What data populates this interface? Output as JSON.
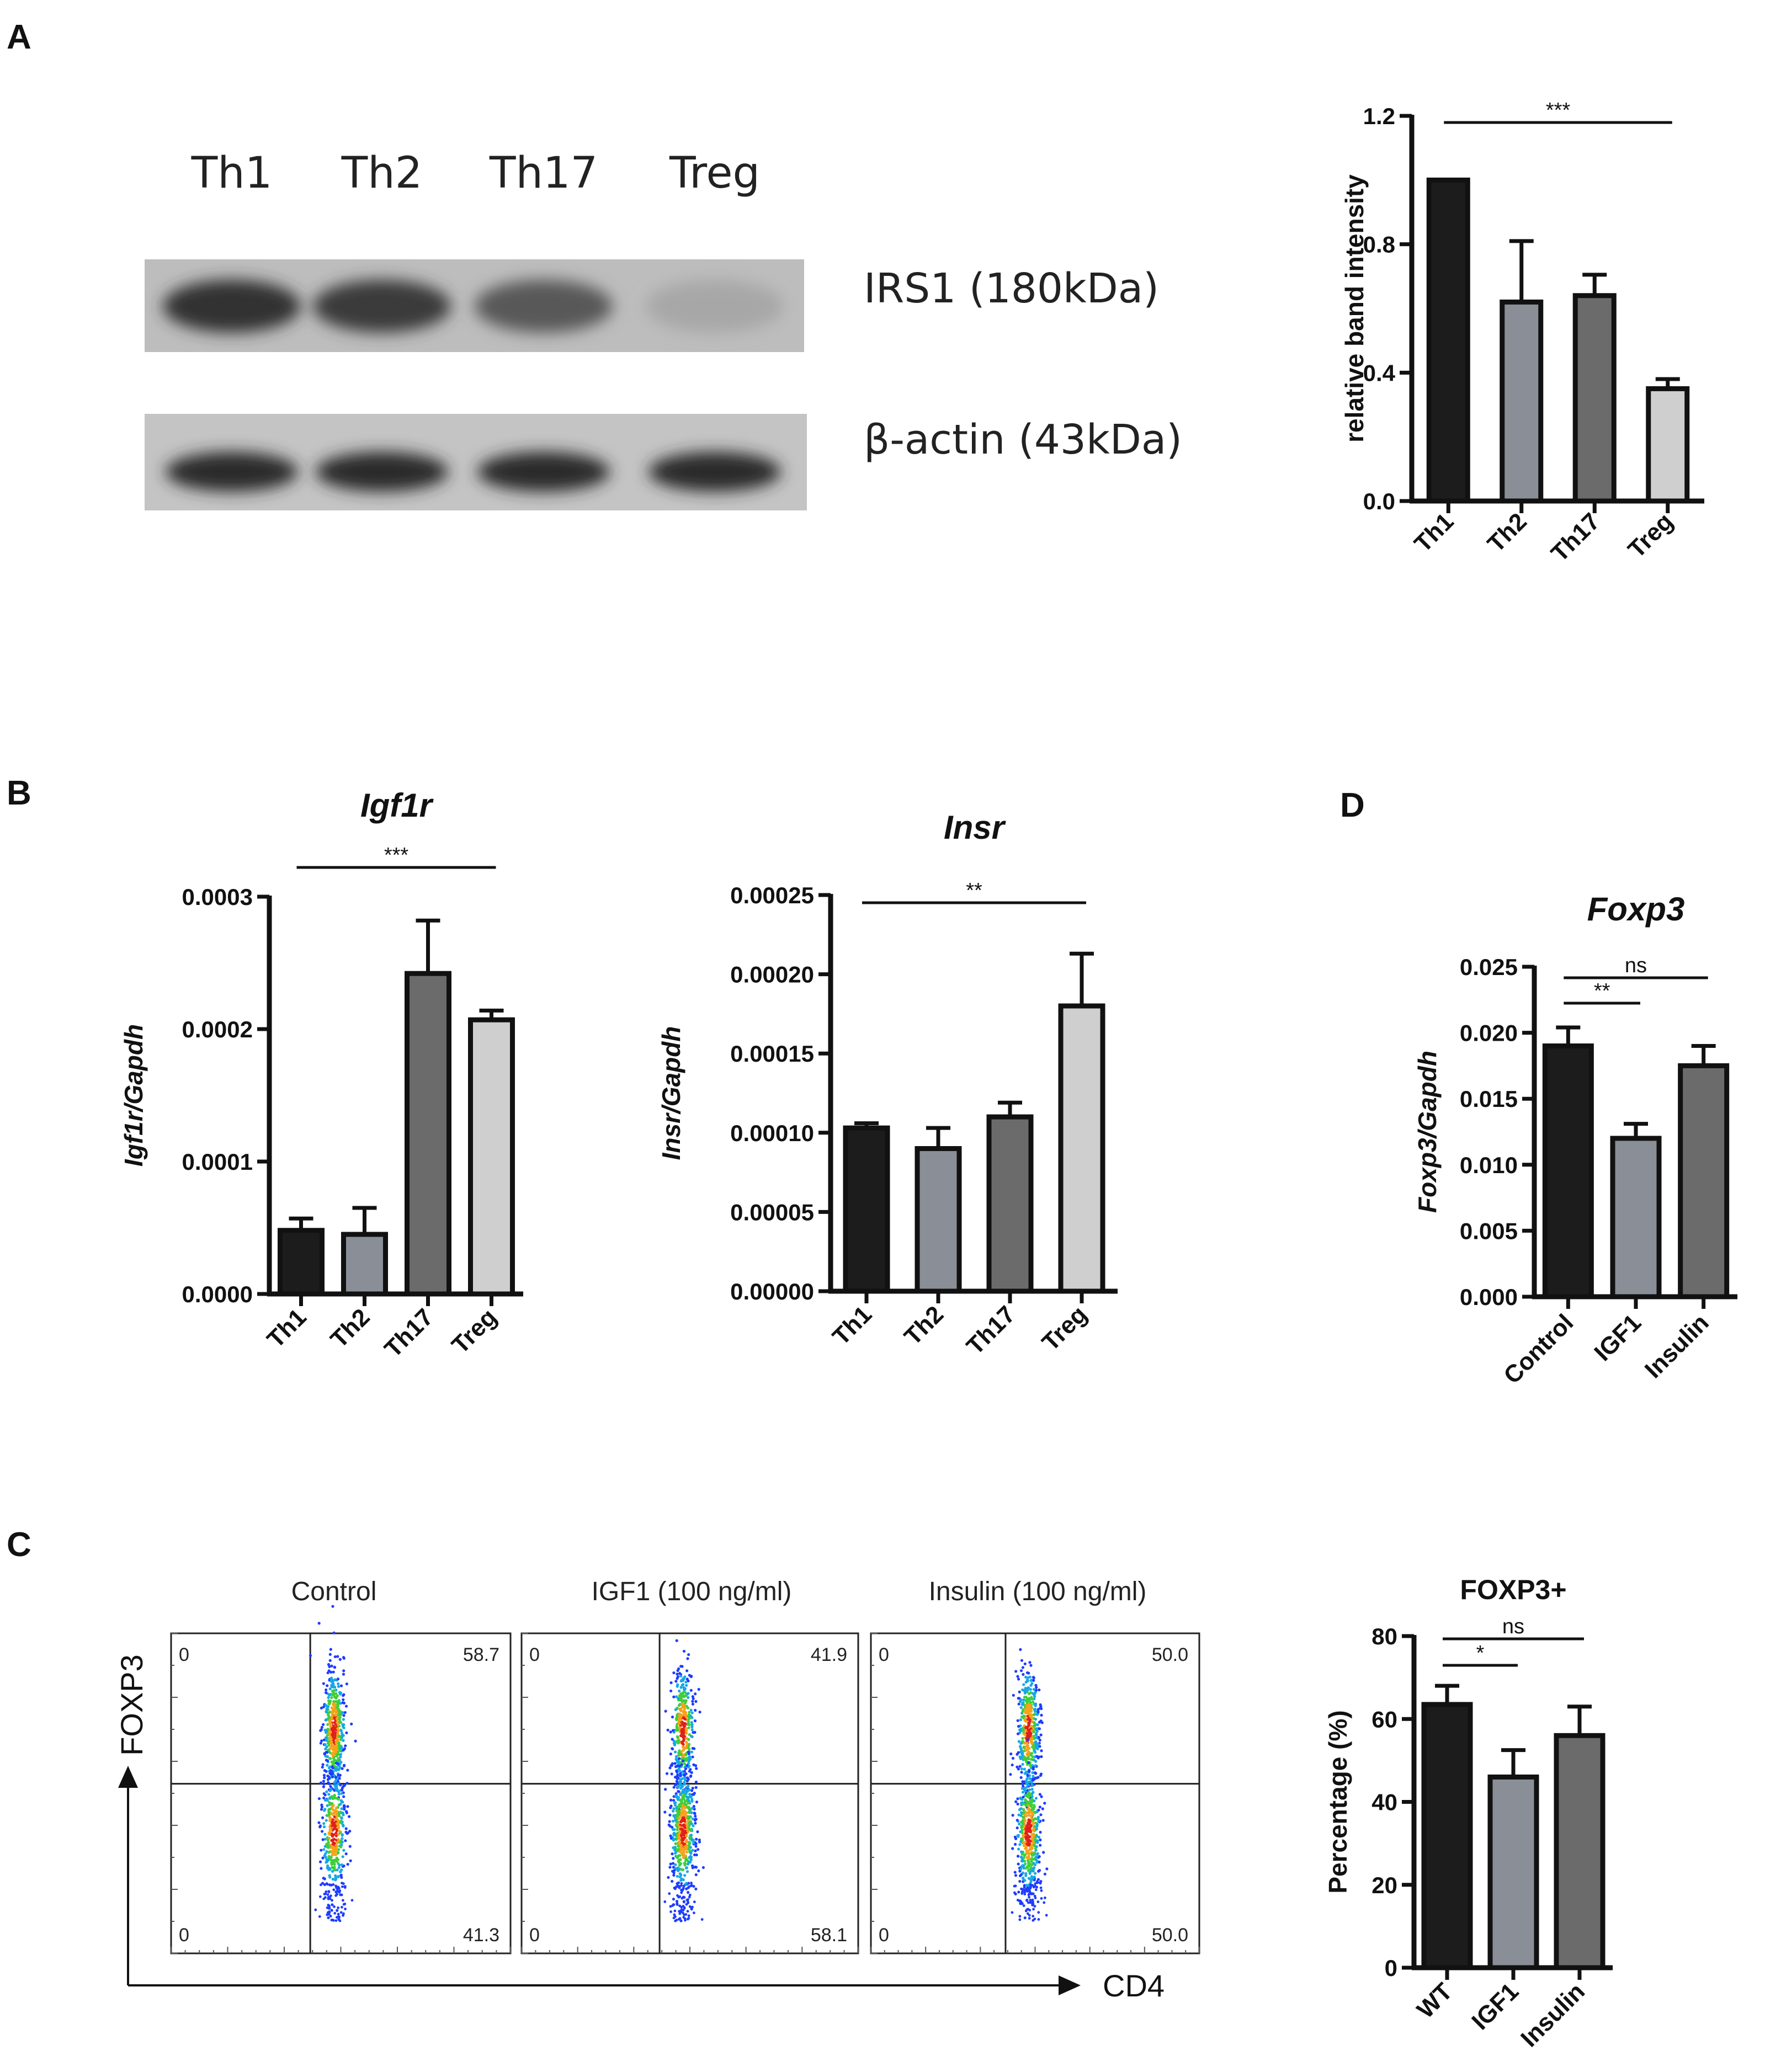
{
  "panels": {
    "A": "A",
    "B": "B",
    "C": "C",
    "D": "D"
  },
  "western_blot": {
    "lanes": [
      "Th1",
      "Th2",
      "Th17",
      "Treg"
    ],
    "band1_label": "IRS1 (180kDa)",
    "band2_label": "β-actin (43kDa)",
    "band1_intensity": [
      0.9,
      0.85,
      0.65,
      0.12
    ],
    "band2_intensity": [
      0.95,
      0.95,
      0.95,
      0.95
    ]
  },
  "chart_data": [
    {
      "id": "A_bar",
      "type": "bar",
      "title": "",
      "xlabel": "",
      "ylabel": "relative band intensity",
      "categories": [
        "Th1",
        "Th2",
        "Th17",
        "Treg"
      ],
      "values": [
        1.0,
        0.62,
        0.64,
        0.35
      ],
      "errors": [
        0.0,
        0.19,
        0.065,
        0.03
      ],
      "ylim": [
        0,
        1.2
      ],
      "yticks": [
        "0.0",
        "0.4",
        "0.8",
        "1.2"
      ],
      "ytick_values": [
        0,
        0.4,
        0.8,
        1.2
      ],
      "colors": [
        "#1c1c1c",
        "#8a8f97",
        "#6b6b6b",
        "#cfcfcf"
      ],
      "significance": [
        {
          "from": 0,
          "to": 3,
          "label": "***"
        }
      ]
    },
    {
      "id": "B_igf1r",
      "type": "bar",
      "title": "Igf1r",
      "xlabel": "",
      "ylabel": "Igf1r/Gapdh",
      "categories": [
        "Th1",
        "Th2",
        "Th17",
        "Treg"
      ],
      "values": [
        4.8e-05,
        4.5e-05,
        0.000242,
        0.000207
      ],
      "errors": [
        9e-06,
        2e-05,
        4e-05,
        7e-06
      ],
      "ylim": [
        0,
        0.0003
      ],
      "yticks": [
        "0.0000",
        "0.0001",
        "0.0002",
        "0.0003"
      ],
      "ytick_values": [
        0,
        0.0001,
        0.0002,
        0.0003
      ],
      "colors": [
        "#1c1c1c",
        "#8a8f97",
        "#6b6b6b",
        "#cfcfcf"
      ],
      "significance": [
        {
          "from": 0,
          "to": 3,
          "label": "***"
        }
      ]
    },
    {
      "id": "B_insr",
      "type": "bar",
      "title": "Insr",
      "xlabel": "",
      "ylabel": "Insr/Gapdh",
      "categories": [
        "Th1",
        "Th2",
        "Th17",
        "Treg"
      ],
      "values": [
        0.000103,
        9e-05,
        0.00011,
        0.00018
      ],
      "errors": [
        3e-06,
        1.3e-05,
        9e-06,
        3.3e-05
      ],
      "ylim": [
        0,
        0.00025
      ],
      "yticks": [
        "0.00000",
        "0.00005",
        "0.00010",
        "0.00015",
        "0.00020",
        "0.00025"
      ],
      "ytick_values": [
        0,
        5e-05,
        0.0001,
        0.00015,
        0.0002,
        0.00025
      ],
      "colors": [
        "#1c1c1c",
        "#8a8f97",
        "#6b6b6b",
        "#cfcfcf"
      ],
      "significance": [
        {
          "from": 0,
          "to": 3,
          "label": "**"
        }
      ]
    },
    {
      "id": "D_foxp3",
      "type": "bar",
      "title": "Foxp3",
      "xlabel": "",
      "ylabel": "Foxp3/Gapdh",
      "categories": [
        "Control",
        "IGF1",
        "Insulin"
      ],
      "values": [
        0.019,
        0.012,
        0.0175
      ],
      "errors": [
        0.0014,
        0.0011,
        0.0015
      ],
      "ylim": [
        0,
        0.025
      ],
      "yticks": [
        "0.000",
        "0.005",
        "0.010",
        "0.015",
        "0.020",
        "0.025"
      ],
      "ytick_values": [
        0,
        0.005,
        0.01,
        0.015,
        0.02,
        0.025
      ],
      "colors": [
        "#1c1c1c",
        "#8a8f97",
        "#6b6b6b"
      ],
      "significance": [
        {
          "from": 0,
          "to": 1,
          "label": "**"
        },
        {
          "from": 0,
          "to": 2,
          "label": "ns"
        }
      ]
    },
    {
      "id": "C_foxp3_pct",
      "type": "bar",
      "title": "FOXP3+",
      "xlabel": "",
      "ylabel": "Percentage (%)",
      "categories": [
        "WT",
        "IGF1",
        "Insulin"
      ],
      "values": [
        63.5,
        46,
        56
      ],
      "errors": [
        4.5,
        6.5,
        7
      ],
      "ylim": [
        0,
        80
      ],
      "yticks": [
        "0",
        "20",
        "40",
        "60",
        "80"
      ],
      "ytick_values": [
        0,
        20,
        40,
        60,
        80
      ],
      "colors": [
        "#1c1c1c",
        "#8a8f97",
        "#6b6b6b"
      ],
      "significance": [
        {
          "from": 0,
          "to": 1,
          "label": "*"
        },
        {
          "from": 0,
          "to": 2,
          "label": "ns"
        }
      ]
    }
  ],
  "flow": {
    "y_axis": "FOXP3",
    "x_axis": "CD4",
    "plots": [
      {
        "title": "Control",
        "q_ul": "0",
        "q_ur": "58.7",
        "q_ll": "0",
        "q_lr": "41.3",
        "upper_fraction": 0.587
      },
      {
        "title": "IGF1 (100 ng/ml)",
        "q_ul": "0",
        "q_ur": "41.9",
        "q_ll": "0",
        "q_lr": "58.1",
        "upper_fraction": 0.419
      },
      {
        "title": "Insulin (100 ng/ml)",
        "q_ul": "0",
        "q_ur": "50.0",
        "q_ll": "0",
        "q_lr": "50.0",
        "upper_fraction": 0.5
      }
    ]
  }
}
